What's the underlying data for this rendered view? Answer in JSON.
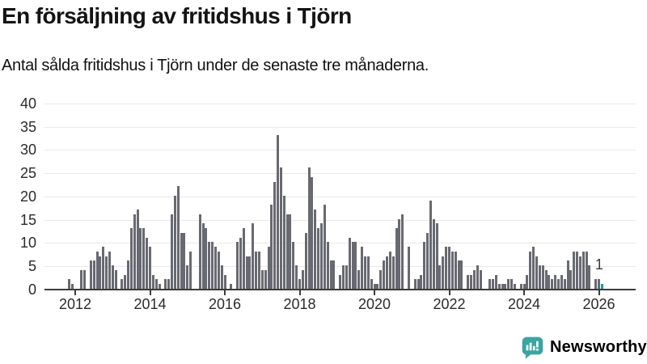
{
  "title": "En försäljning av fritidshus i Tjörn",
  "subtitle": "Antal sålda fritidshus i Tjörn under de senaste tre månaderna.",
  "branding": {
    "name": "Newsworthy",
    "color": "#3aa5a2"
  },
  "chart_data": {
    "type": "bar",
    "title": "En försäljning av fritidshus i Tjörn",
    "subtitle": "Antal sålda fritidshus i Tjörn under de senaste tre månaderna.",
    "frequency": "monthly",
    "start_year": 2011,
    "start_month": 11,
    "values": [
      2,
      1,
      0,
      0,
      4,
      4,
      0,
      6,
      6,
      8,
      7,
      9,
      7,
      8,
      5,
      4,
      0,
      2,
      3,
      6,
      13,
      16,
      17,
      13,
      13,
      11,
      9,
      3,
      2,
      1,
      0,
      2,
      2,
      16,
      20,
      22,
      12,
      12,
      5,
      8,
      0,
      0,
      16,
      14,
      13,
      10,
      10,
      9,
      8,
      5,
      3,
      0,
      1,
      0,
      10,
      11,
      13,
      7,
      7,
      14,
      8,
      8,
      4,
      4,
      9,
      18,
      23,
      33,
      26,
      20,
      16,
      16,
      10,
      5,
      2,
      4,
      12,
      26,
      24,
      17,
      13,
      14,
      18,
      10,
      6,
      6,
      0,
      3,
      5,
      5,
      11,
      10,
      10,
      4,
      9,
      7,
      7,
      2,
      1,
      1,
      4,
      6,
      7,
      8,
      7,
      13,
      15,
      16,
      0,
      9,
      0,
      2,
      2,
      3,
      10,
      12,
      19,
      15,
      14,
      5,
      7,
      9,
      9,
      8,
      8,
      6,
      6,
      0,
      3,
      3,
      4,
      5,
      4,
      0,
      0,
      2,
      2,
      3,
      1,
      1,
      1,
      2,
      2,
      1,
      0,
      1,
      1,
      3,
      8,
      9,
      7,
      5,
      5,
      4,
      3,
      2,
      3,
      2,
      3,
      2,
      6,
      4,
      8,
      8,
      7,
      8,
      8,
      5,
      0,
      2,
      2,
      1
    ],
    "highlight_last": {
      "value": 1,
      "label": "1",
      "color": "#12a19e"
    },
    "bar_color": "#696971",
    "axis_color": "#3c3c3c",
    "grid_color": "#e8e8e8",
    "ylim": [
      0,
      40
    ],
    "yticks": [
      0,
      5,
      10,
      15,
      20,
      25,
      30,
      35,
      40
    ],
    "xticks": [
      2012,
      2014,
      2016,
      2018,
      2020,
      2022,
      2024,
      2026
    ],
    "grid": "horizontal",
    "legend": "none"
  }
}
